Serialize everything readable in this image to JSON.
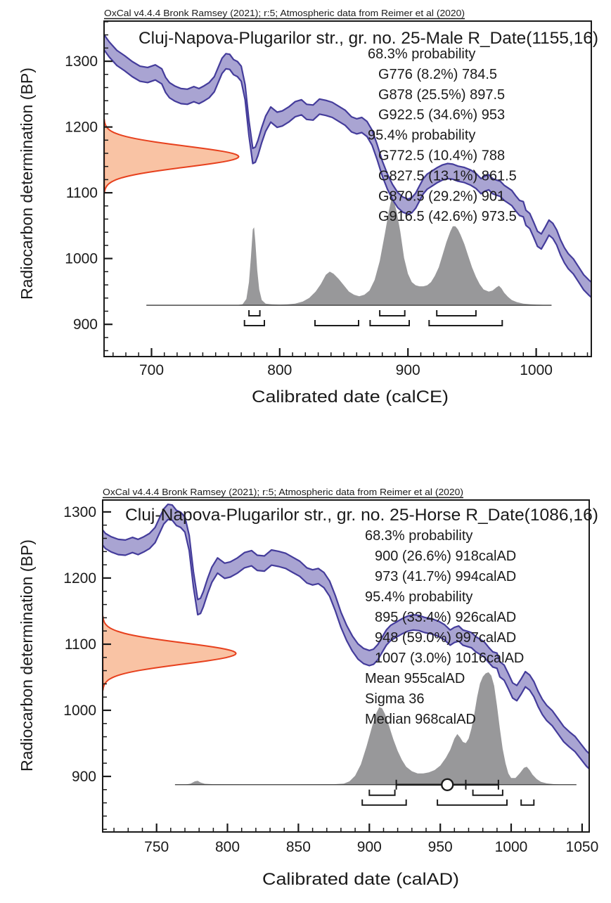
{
  "shared": {
    "watermark": "OxCal v4.4.4 Bronk Ramsey (2021); r:5; Atmospheric data from Reimer et al (2020)",
    "ylabel": "Radiocarbon determination (BP)",
    "colors": {
      "curve_fill": "#a9a4d2",
      "curve_stroke": "#443c9b",
      "r_date_fill": "#f9c3a4",
      "r_date_stroke": "#e7401d",
      "posterior_fill": "#98989a",
      "axis": "#1a1a1a",
      "text": "#1a1a1a"
    },
    "calibration_curve": {
      "halfwidth_bp": 11.5,
      "points_cal_bp": [
        [
          658,
          1342
        ],
        [
          660,
          1337
        ],
        [
          667,
          1318
        ],
        [
          673,
          1305
        ],
        [
          679,
          1297
        ],
        [
          685,
          1288
        ],
        [
          691,
          1281
        ],
        [
          697,
          1279
        ],
        [
          703,
          1283
        ],
        [
          708,
          1277
        ],
        [
          711,
          1264
        ],
        [
          714,
          1256
        ],
        [
          718,
          1251
        ],
        [
          723,
          1247
        ],
        [
          728,
          1246
        ],
        [
          733,
          1250
        ],
        [
          737,
          1247
        ],
        [
          741,
          1251
        ],
        [
          745,
          1256
        ],
        [
          749,
          1265
        ],
        [
          752,
          1279
        ],
        [
          755,
          1293
        ],
        [
          758,
          1300
        ],
        [
          761,
          1299
        ],
        [
          764,
          1291
        ],
        [
          767,
          1288
        ],
        [
          770,
          1281
        ],
        [
          773,
          1253
        ],
        [
          776,
          1198
        ],
        [
          779,
          1156
        ],
        [
          781,
          1158
        ],
        [
          783,
          1168
        ],
        [
          786,
          1188
        ],
        [
          789,
          1205
        ],
        [
          793,
          1219
        ],
        [
          798,
          1211
        ],
        [
          802,
          1213
        ],
        [
          807,
          1219
        ],
        [
          812,
          1227
        ],
        [
          817,
          1230
        ],
        [
          821,
          1223
        ],
        [
          826,
          1222
        ],
        [
          831,
          1231
        ],
        [
          836,
          1229
        ],
        [
          841,
          1226
        ],
        [
          846,
          1220
        ],
        [
          851,
          1214
        ],
        [
          856,
          1204
        ],
        [
          860,
          1201
        ],
        [
          864,
          1203
        ],
        [
          868,
          1197
        ],
        [
          872,
          1184
        ],
        [
          876,
          1162
        ],
        [
          880,
          1137
        ],
        [
          884,
          1117
        ],
        [
          888,
          1101
        ],
        [
          892,
          1089
        ],
        [
          896,
          1082
        ],
        [
          900,
          1079
        ],
        [
          903,
          1081
        ],
        [
          906,
          1088
        ],
        [
          909,
          1099
        ],
        [
          912,
          1110
        ],
        [
          915,
          1117
        ],
        [
          919,
          1122
        ],
        [
          923,
          1127
        ],
        [
          927,
          1131
        ],
        [
          931,
          1133
        ],
        [
          935,
          1132
        ],
        [
          939,
          1129
        ],
        [
          944,
          1127
        ],
        [
          949,
          1123
        ],
        [
          953,
          1118
        ],
        [
          957,
          1110
        ],
        [
          960,
          1114
        ],
        [
          963,
          1116
        ],
        [
          966,
          1110
        ],
        [
          969,
          1108
        ],
        [
          972,
          1106
        ],
        [
          975,
          1100
        ],
        [
          978,
          1096
        ],
        [
          981,
          1092
        ],
        [
          984,
          1084
        ],
        [
          987,
          1077
        ],
        [
          990,
          1075
        ],
        [
          992,
          1062
        ],
        [
          995,
          1057
        ],
        [
          998,
          1044
        ],
        [
          1001,
          1030
        ],
        [
          1004,
          1026
        ],
        [
          1007,
          1036
        ],
        [
          1010,
          1047
        ],
        [
          1013,
          1042
        ],
        [
          1016,
          1032
        ],
        [
          1019,
          1017
        ],
        [
          1022,
          1005
        ],
        [
          1025,
          996
        ],
        [
          1029,
          988
        ],
        [
          1033,
          976
        ],
        [
          1037,
          964
        ],
        [
          1041,
          956
        ],
        [
          1045,
          949
        ],
        [
          1049,
          938
        ],
        [
          1053,
          927
        ],
        [
          1057,
          919
        ]
      ]
    }
  },
  "chart_data": [
    {
      "type": "area",
      "title": "Cluj-Napova-Plugarilor str., gr. no. 25-Male R_Date(1155,16)",
      "xlabel": "Calibrated date (calCE)",
      "ylabel": "Radiocarbon determination (BP)",
      "x_domain": [
        663,
        1043
      ],
      "y_domain": [
        851,
        1361
      ],
      "x_ticks": [
        700,
        800,
        900,
        1000
      ],
      "y_ticks": [
        900,
        1000,
        1100,
        1200,
        1300
      ],
      "x_minor_step": 10,
      "y_minor_step": 20,
      "annotations": [
        {
          "text": "68.3% probability",
          "indent": 0
        },
        {
          "text": "G776 (8.2%) 784.5",
          "indent": 1
        },
        {
          "text": "G878 (25.5%) 897.5",
          "indent": 1
        },
        {
          "text": "G922.5 (34.6%) 953",
          "indent": 1
        },
        {
          "text": "95.4% probability",
          "indent": 0
        },
        {
          "text": "G772.5 (10.4%) 788",
          "indent": 1
        },
        {
          "text": "G827.5 (13.1%) 861.5",
          "indent": 1
        },
        {
          "text": "G870.5 (29.2%) 901",
          "indent": 1
        },
        {
          "text": "G916.5 (42.6%) 973.5",
          "indent": 1
        }
      ],
      "r_date": {
        "mean": 1155,
        "sigma": 16,
        "extent_cal": 105
      },
      "posterior": {
        "baseline_bp": 929,
        "amp_bp": 160,
        "base_range": [
          696,
          1012
        ],
        "points": [
          [
            766,
            0
          ],
          [
            771,
            0.01
          ],
          [
            774,
            0.06
          ],
          [
            776,
            0.22
          ],
          [
            777.5,
            0.45
          ],
          [
            779,
            0.72
          ],
          [
            780,
            0.74
          ],
          [
            781,
            0.6
          ],
          [
            782.5,
            0.33
          ],
          [
            784,
            0.15
          ],
          [
            786,
            0.05
          ],
          [
            789,
            0.015
          ],
          [
            794,
            0.008
          ],
          [
            800,
            0.006
          ],
          [
            806,
            0.008
          ],
          [
            812,
            0.015
          ],
          [
            818,
            0.035
          ],
          [
            823,
            0.07
          ],
          [
            828,
            0.13
          ],
          [
            832,
            0.2
          ],
          [
            836,
            0.29
          ],
          [
            839,
            0.32
          ],
          [
            842,
            0.3
          ],
          [
            846,
            0.25
          ],
          [
            850,
            0.19
          ],
          [
            854,
            0.13
          ],
          [
            858,
            0.1
          ],
          [
            862,
            0.085
          ],
          [
            866,
            0.1
          ],
          [
            870,
            0.14
          ],
          [
            874,
            0.24
          ],
          [
            878,
            0.42
          ],
          [
            882,
            0.68
          ],
          [
            885,
            0.89
          ],
          [
            887,
            1.0
          ],
          [
            889,
            0.99
          ],
          [
            891,
            0.9
          ],
          [
            894,
            0.7
          ],
          [
            897,
            0.45
          ],
          [
            900,
            0.3
          ],
          [
            903,
            0.22
          ],
          [
            906,
            0.19
          ],
          [
            909,
            0.18
          ],
          [
            912,
            0.18
          ],
          [
            915,
            0.19
          ],
          [
            918,
            0.22
          ],
          [
            921,
            0.28
          ],
          [
            924,
            0.36
          ],
          [
            927,
            0.48
          ],
          [
            930,
            0.6
          ],
          [
            933,
            0.7
          ],
          [
            935,
            0.75
          ],
          [
            937,
            0.75
          ],
          [
            939,
            0.72
          ],
          [
            941,
            0.67
          ],
          [
            944,
            0.58
          ],
          [
            947,
            0.47
          ],
          [
            950,
            0.36
          ],
          [
            953,
            0.27
          ],
          [
            956,
            0.2
          ],
          [
            959,
            0.15
          ],
          [
            963,
            0.13
          ],
          [
            966,
            0.14
          ],
          [
            969,
            0.17
          ],
          [
            971,
            0.185
          ],
          [
            973,
            0.16
          ],
          [
            975,
            0.12
          ],
          [
            978,
            0.08
          ],
          [
            981,
            0.05
          ],
          [
            985,
            0.03
          ],
          [
            990,
            0.015
          ],
          [
            996,
            0.008
          ],
          [
            1004,
            0.004
          ],
          [
            1010,
            0
          ]
        ]
      },
      "ranges": {
        "p68": [
          [
            776,
            784.5
          ],
          [
            878,
            897.5
          ],
          [
            922.5,
            953
          ]
        ],
        "p95": [
          [
            772.5,
            788
          ],
          [
            827.5,
            861.5
          ],
          [
            870.5,
            901
          ],
          [
            916.5,
            973.5
          ]
        ]
      }
    },
    {
      "type": "area",
      "title": "Cluj-Napova-Plugarilor str., gr. no. 25-Horse R_Date(1086,16)",
      "xlabel": "Calibrated date (calAD)",
      "ylabel": "Radiocarbon determination (BP)",
      "x_domain": [
        712,
        1055
      ],
      "y_domain": [
        816,
        1318
      ],
      "x_ticks": [
        750,
        800,
        850,
        900,
        950,
        1000,
        1050
      ],
      "y_ticks": [
        900,
        1000,
        1100,
        1200,
        1300
      ],
      "x_minor_step": 10,
      "y_minor_step": 20,
      "annotations": [
        {
          "text": "68.3% probability",
          "indent": 0
        },
        {
          "text": "900 (26.6%) 918calAD",
          "indent": 1
        },
        {
          "text": "973 (41.7%) 994calAD",
          "indent": 1
        },
        {
          "text": "95.4% probability",
          "indent": 0
        },
        {
          "text": "895 (33.4%) 926calAD",
          "indent": 1
        },
        {
          "text": "948 (59.0%) 997calAD",
          "indent": 1
        },
        {
          "text": "1007 (3.0%) 1016calAD",
          "indent": 1
        },
        {
          "text": "Mean 955calAD",
          "indent": 0
        },
        {
          "text": "Sigma 36",
          "indent": 0
        },
        {
          "text": "Median 968calAD",
          "indent": 0
        }
      ],
      "r_date": {
        "mean": 1086,
        "sigma": 16,
        "extent_cal": 94
      },
      "mean_marker": {
        "mean": 955,
        "sigma": 36,
        "median": 968
      },
      "posterior": {
        "baseline_bp": 887.5,
        "amp_bp": 170,
        "base_range": [
          763,
          1046
        ],
        "points": [
          [
            770,
            0
          ],
          [
            774,
            0.01
          ],
          [
            777,
            0.03
          ],
          [
            779,
            0.035
          ],
          [
            781,
            0.02
          ],
          [
            784,
            0.008
          ],
          [
            790,
            0.004
          ],
          [
            800,
            0.003
          ],
          [
            820,
            0.002
          ],
          [
            840,
            0.002
          ],
          [
            860,
            0.003
          ],
          [
            875,
            0.004
          ],
          [
            882,
            0.01
          ],
          [
            886,
            0.03
          ],
          [
            890,
            0.08
          ],
          [
            894,
            0.18
          ],
          [
            898,
            0.34
          ],
          [
            902,
            0.52
          ],
          [
            905,
            0.64
          ],
          [
            907,
            0.69
          ],
          [
            909,
            0.68
          ],
          [
            911,
            0.63
          ],
          [
            914,
            0.52
          ],
          [
            917,
            0.4
          ],
          [
            920,
            0.3
          ],
          [
            923,
            0.22
          ],
          [
            926,
            0.16
          ],
          [
            930,
            0.12
          ],
          [
            934,
            0.1
          ],
          [
            938,
            0.1
          ],
          [
            942,
            0.11
          ],
          [
            946,
            0.13
          ],
          [
            950,
            0.17
          ],
          [
            954,
            0.24
          ],
          [
            957,
            0.31
          ],
          [
            960,
            0.41
          ],
          [
            962,
            0.45
          ],
          [
            964,
            0.42
          ],
          [
            966,
            0.38
          ],
          [
            968,
            0.37
          ],
          [
            970,
            0.41
          ],
          [
            972,
            0.5
          ],
          [
            974,
            0.63
          ],
          [
            976,
            0.78
          ],
          [
            978,
            0.9
          ],
          [
            980,
            0.96
          ],
          [
            982,
            0.99
          ],
          [
            984,
            1.0
          ],
          [
            986,
            0.97
          ],
          [
            988,
            0.88
          ],
          [
            990,
            0.7
          ],
          [
            992,
            0.5
          ],
          [
            994,
            0.32
          ],
          [
            996,
            0.19
          ],
          [
            998,
            0.1
          ],
          [
            1000,
            0.06
          ],
          [
            1003,
            0.06
          ],
          [
            1006,
            0.1
          ],
          [
            1009,
            0.15
          ],
          [
            1011,
            0.16
          ],
          [
            1013,
            0.13
          ],
          [
            1015,
            0.09
          ],
          [
            1018,
            0.05
          ],
          [
            1021,
            0.025
          ],
          [
            1025,
            0.012
          ],
          [
            1030,
            0.005
          ],
          [
            1036,
            0
          ]
        ]
      },
      "ranges": {
        "p68": [
          [
            900,
            918
          ],
          [
            973,
            994
          ]
        ],
        "p95": [
          [
            895,
            926
          ],
          [
            948,
            997
          ],
          [
            1007,
            1016
          ]
        ]
      }
    }
  ]
}
